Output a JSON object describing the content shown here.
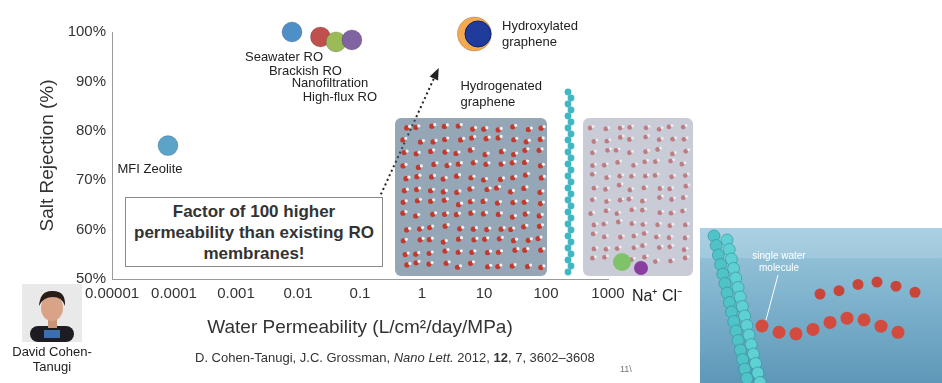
{
  "chart_data": {
    "type": "scatter",
    "x_label": "Water Permeability (L/cm²/day/MPa)",
    "y_label": "Salt Rejection (%)",
    "x": [
      8e-05,
      0.008,
      0.023,
      0.041,
      0.074,
      7,
      8
    ],
    "values": [
      77,
      100,
      99,
      98,
      98.4,
      99.6,
      99.6
    ],
    "point_labels": [
      "MFI Zeolite",
      "Seawater RO",
      "Brackish RO",
      "Nanofiltration",
      "High-flux RO",
      "Hydrogenated graphene",
      "Hydroxylated graphene"
    ],
    "colors": [
      "#5ba3c9",
      "#4f8fc7",
      "#c0504d",
      "#9bbb59",
      "#8064a2",
      "#f2a950",
      "#1f3b9b"
    ],
    "marker": "circle",
    "log": "x",
    "xlim": [
      1e-05,
      1000
    ],
    "xticks": [
      1e-05,
      0.0001,
      0.001,
      0.01,
      0.1,
      1,
      10,
      100,
      1000
    ],
    "ylim": [
      50,
      100
    ],
    "yticks": [
      {
        "value": 50,
        "label": "50%"
      },
      {
        "value": 60,
        "label": "60%"
      },
      {
        "value": 70,
        "label": "70%"
      },
      {
        "value": 80,
        "label": "80%"
      },
      {
        "value": 90,
        "label": "90%"
      },
      {
        "value": 100,
        "label": "100%"
      }
    ],
    "grid": false,
    "arrow": {
      "x": [
        0.093,
        1.75
      ],
      "values": [
        57,
        92
      ],
      "line_style": "dotted",
      "color": "#222222"
    },
    "annotation": "Factor of 100 higher permeability than existing RO membranes!"
  },
  "photo_caption": "David Cohen-Tanugi",
  "citation": [
    "D. Cohen-Tanugi, J.C. Grossman, ",
    "Nano Lett.",
    " 2012, ",
    "12",
    ", 7, 3602–3608"
  ],
  "page_number": "11\\",
  "image_labels": {
    "ions": "Na⁺Cl⁻",
    "molecule": "single water molecule"
  }
}
